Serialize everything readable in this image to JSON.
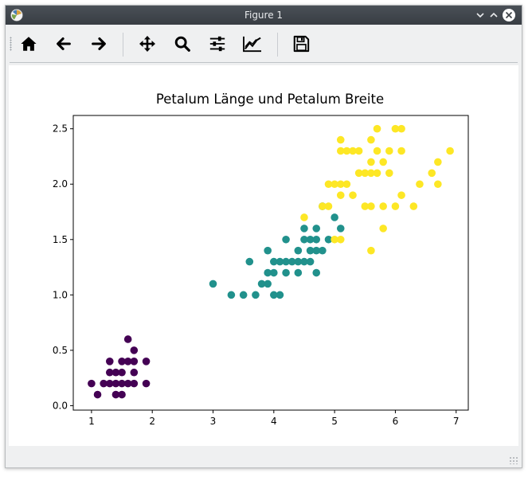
{
  "window": {
    "title": "Figure 1"
  },
  "toolbar": {
    "buttons": [
      {
        "name": "home-button",
        "icon": "home-icon"
      },
      {
        "name": "back-button",
        "icon": "arrow-left-icon"
      },
      {
        "name": "forward-button",
        "icon": "arrow-right-icon"
      },
      {
        "name": "pan-button",
        "icon": "move-icon"
      },
      {
        "name": "zoom-button",
        "icon": "magnifier-icon"
      },
      {
        "name": "configure-subplots-button",
        "icon": "sliders-icon"
      },
      {
        "name": "edit-axis-button",
        "icon": "line-chart-icon"
      },
      {
        "name": "save-button",
        "icon": "floppy-disk-icon"
      }
    ]
  },
  "chart_data": {
    "type": "scatter",
    "title": "Petalum Länge und Petalum Breite",
    "xlabel": "",
    "ylabel": "",
    "xlim": [
      0.7,
      7.2
    ],
    "ylim": [
      -0.04,
      2.62
    ],
    "xticks": [
      "1",
      "2",
      "3",
      "4",
      "5",
      "6",
      "7"
    ],
    "yticks": [
      "0.0",
      "0.5",
      "1.0",
      "1.5",
      "2.0",
      "2.5"
    ],
    "grid": false,
    "series": [
      {
        "color": "#440154",
        "points": [
          [
            1.0,
            0.2
          ],
          [
            1.1,
            0.1
          ],
          [
            1.2,
            0.2
          ],
          [
            1.3,
            0.2
          ],
          [
            1.3,
            0.3
          ],
          [
            1.3,
            0.4
          ],
          [
            1.4,
            0.1
          ],
          [
            1.4,
            0.2
          ],
          [
            1.4,
            0.3
          ],
          [
            1.5,
            0.1
          ],
          [
            1.5,
            0.2
          ],
          [
            1.5,
            0.3
          ],
          [
            1.5,
            0.4
          ],
          [
            1.6,
            0.2
          ],
          [
            1.6,
            0.4
          ],
          [
            1.6,
            0.6
          ],
          [
            1.7,
            0.2
          ],
          [
            1.7,
            0.3
          ],
          [
            1.7,
            0.4
          ],
          [
            1.7,
            0.5
          ],
          [
            1.9,
            0.2
          ],
          [
            1.9,
            0.4
          ]
        ]
      },
      {
        "color": "#21918c",
        "points": [
          [
            3.0,
            1.1
          ],
          [
            3.3,
            1.0
          ],
          [
            3.5,
            1.0
          ],
          [
            3.6,
            1.3
          ],
          [
            3.7,
            1.0
          ],
          [
            3.8,
            1.1
          ],
          [
            3.9,
            1.1
          ],
          [
            3.9,
            1.2
          ],
          [
            3.9,
            1.4
          ],
          [
            4.0,
            1.0
          ],
          [
            4.0,
            1.2
          ],
          [
            4.0,
            1.3
          ],
          [
            4.1,
            1.0
          ],
          [
            4.1,
            1.3
          ],
          [
            4.2,
            1.2
          ],
          [
            4.2,
            1.3
          ],
          [
            4.2,
            1.5
          ],
          [
            4.3,
            1.3
          ],
          [
            4.4,
            1.2
          ],
          [
            4.4,
            1.3
          ],
          [
            4.4,
            1.4
          ],
          [
            4.5,
            1.3
          ],
          [
            4.5,
            1.5
          ],
          [
            4.5,
            1.6
          ],
          [
            4.6,
            1.3
          ],
          [
            4.6,
            1.4
          ],
          [
            4.6,
            1.5
          ],
          [
            4.7,
            1.2
          ],
          [
            4.7,
            1.4
          ],
          [
            4.7,
            1.5
          ],
          [
            4.7,
            1.6
          ],
          [
            4.8,
            1.4
          ],
          [
            4.8,
            1.8
          ],
          [
            4.9,
            1.5
          ],
          [
            5.0,
            1.7
          ],
          [
            5.1,
            1.6
          ]
        ]
      },
      {
        "color": "#fde725",
        "points": [
          [
            4.5,
            1.7
          ],
          [
            4.8,
            1.8
          ],
          [
            4.9,
            1.8
          ],
          [
            4.9,
            2.0
          ],
          [
            5.0,
            1.5
          ],
          [
            5.0,
            2.0
          ],
          [
            5.1,
            1.5
          ],
          [
            5.1,
            1.9
          ],
          [
            5.1,
            2.0
          ],
          [
            5.1,
            2.3
          ],
          [
            5.1,
            2.4
          ],
          [
            5.2,
            2.0
          ],
          [
            5.2,
            2.3
          ],
          [
            5.3,
            1.9
          ],
          [
            5.3,
            2.3
          ],
          [
            5.4,
            2.1
          ],
          [
            5.4,
            2.3
          ],
          [
            5.5,
            1.8
          ],
          [
            5.5,
            2.1
          ],
          [
            5.6,
            1.4
          ],
          [
            5.6,
            1.8
          ],
          [
            5.6,
            2.1
          ],
          [
            5.6,
            2.2
          ],
          [
            5.6,
            2.4
          ],
          [
            5.7,
            2.1
          ],
          [
            5.7,
            2.3
          ],
          [
            5.7,
            2.5
          ],
          [
            5.8,
            1.6
          ],
          [
            5.8,
            1.8
          ],
          [
            5.8,
            2.2
          ],
          [
            5.9,
            2.1
          ],
          [
            5.9,
            2.3
          ],
          [
            6.0,
            1.8
          ],
          [
            6.0,
            2.5
          ],
          [
            6.1,
            1.9
          ],
          [
            6.1,
            2.3
          ],
          [
            6.1,
            2.5
          ],
          [
            6.3,
            1.8
          ],
          [
            6.4,
            2.0
          ],
          [
            6.6,
            2.1
          ],
          [
            6.7,
            2.0
          ],
          [
            6.7,
            2.2
          ],
          [
            6.9,
            2.3
          ]
        ]
      }
    ]
  }
}
